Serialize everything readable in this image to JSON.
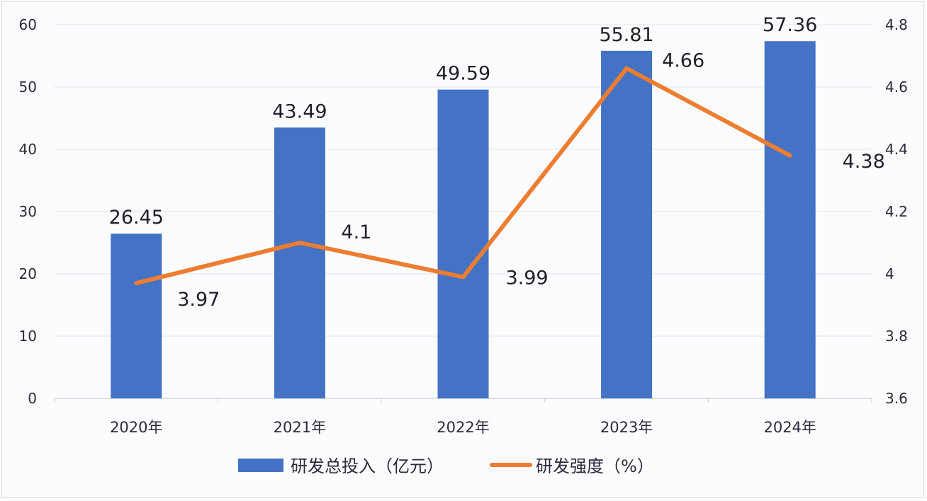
{
  "chart_data": {
    "type": "bar+line",
    "title": "",
    "categories": [
      "2020年",
      "2021年",
      "2022年",
      "2023年",
      "2024年"
    ],
    "series": [
      {
        "name": "研发总投入（亿元）",
        "type": "bar",
        "axis": "left",
        "color": "#4472c4",
        "values": [
          26.45,
          43.49,
          49.59,
          55.81,
          57.36
        ],
        "labels": [
          "26.45",
          "43.49",
          "49.59",
          "55.81",
          "57.36"
        ]
      },
      {
        "name": "研发强度（%）",
        "type": "line",
        "axis": "right",
        "color": "#ed7d31",
        "values": [
          3.97,
          4.1,
          3.99,
          4.66,
          4.38
        ],
        "labels": [
          "3.97",
          "4.1",
          "3.99",
          "4.66",
          "4.38"
        ]
      }
    ],
    "left_axis": {
      "ylim": [
        0,
        60
      ],
      "ticks": [
        "0",
        "10",
        "20",
        "30",
        "40",
        "50",
        "60"
      ]
    },
    "right_axis": {
      "ylim": [
        3.6,
        4.8
      ],
      "ticks": [
        "3.6",
        "3.8",
        "4",
        "4.2",
        "4.4",
        "4.6",
        "4.8"
      ]
    },
    "xlabel": "",
    "ylabel": "",
    "grid": true,
    "legend_position": "bottom"
  }
}
